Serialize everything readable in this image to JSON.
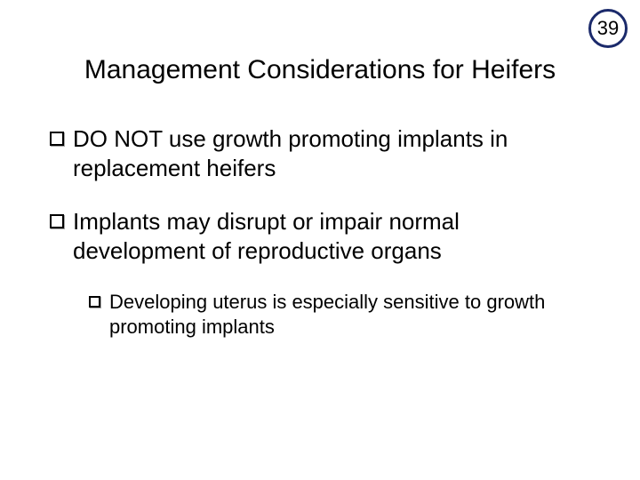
{
  "slide_number": "39",
  "title": "Management Considerations for Heifers",
  "bullets": {
    "b1": "DO NOT use growth promoting implants in replacement heifers",
    "b2": "Implants may disrupt or impair normal development of reproductive organs",
    "b2_1": "Developing uterus is especially sensitive to growth promoting implants"
  },
  "colors": {
    "badge_border": "#1b2a6b",
    "text": "#000000",
    "background": "#ffffff"
  }
}
